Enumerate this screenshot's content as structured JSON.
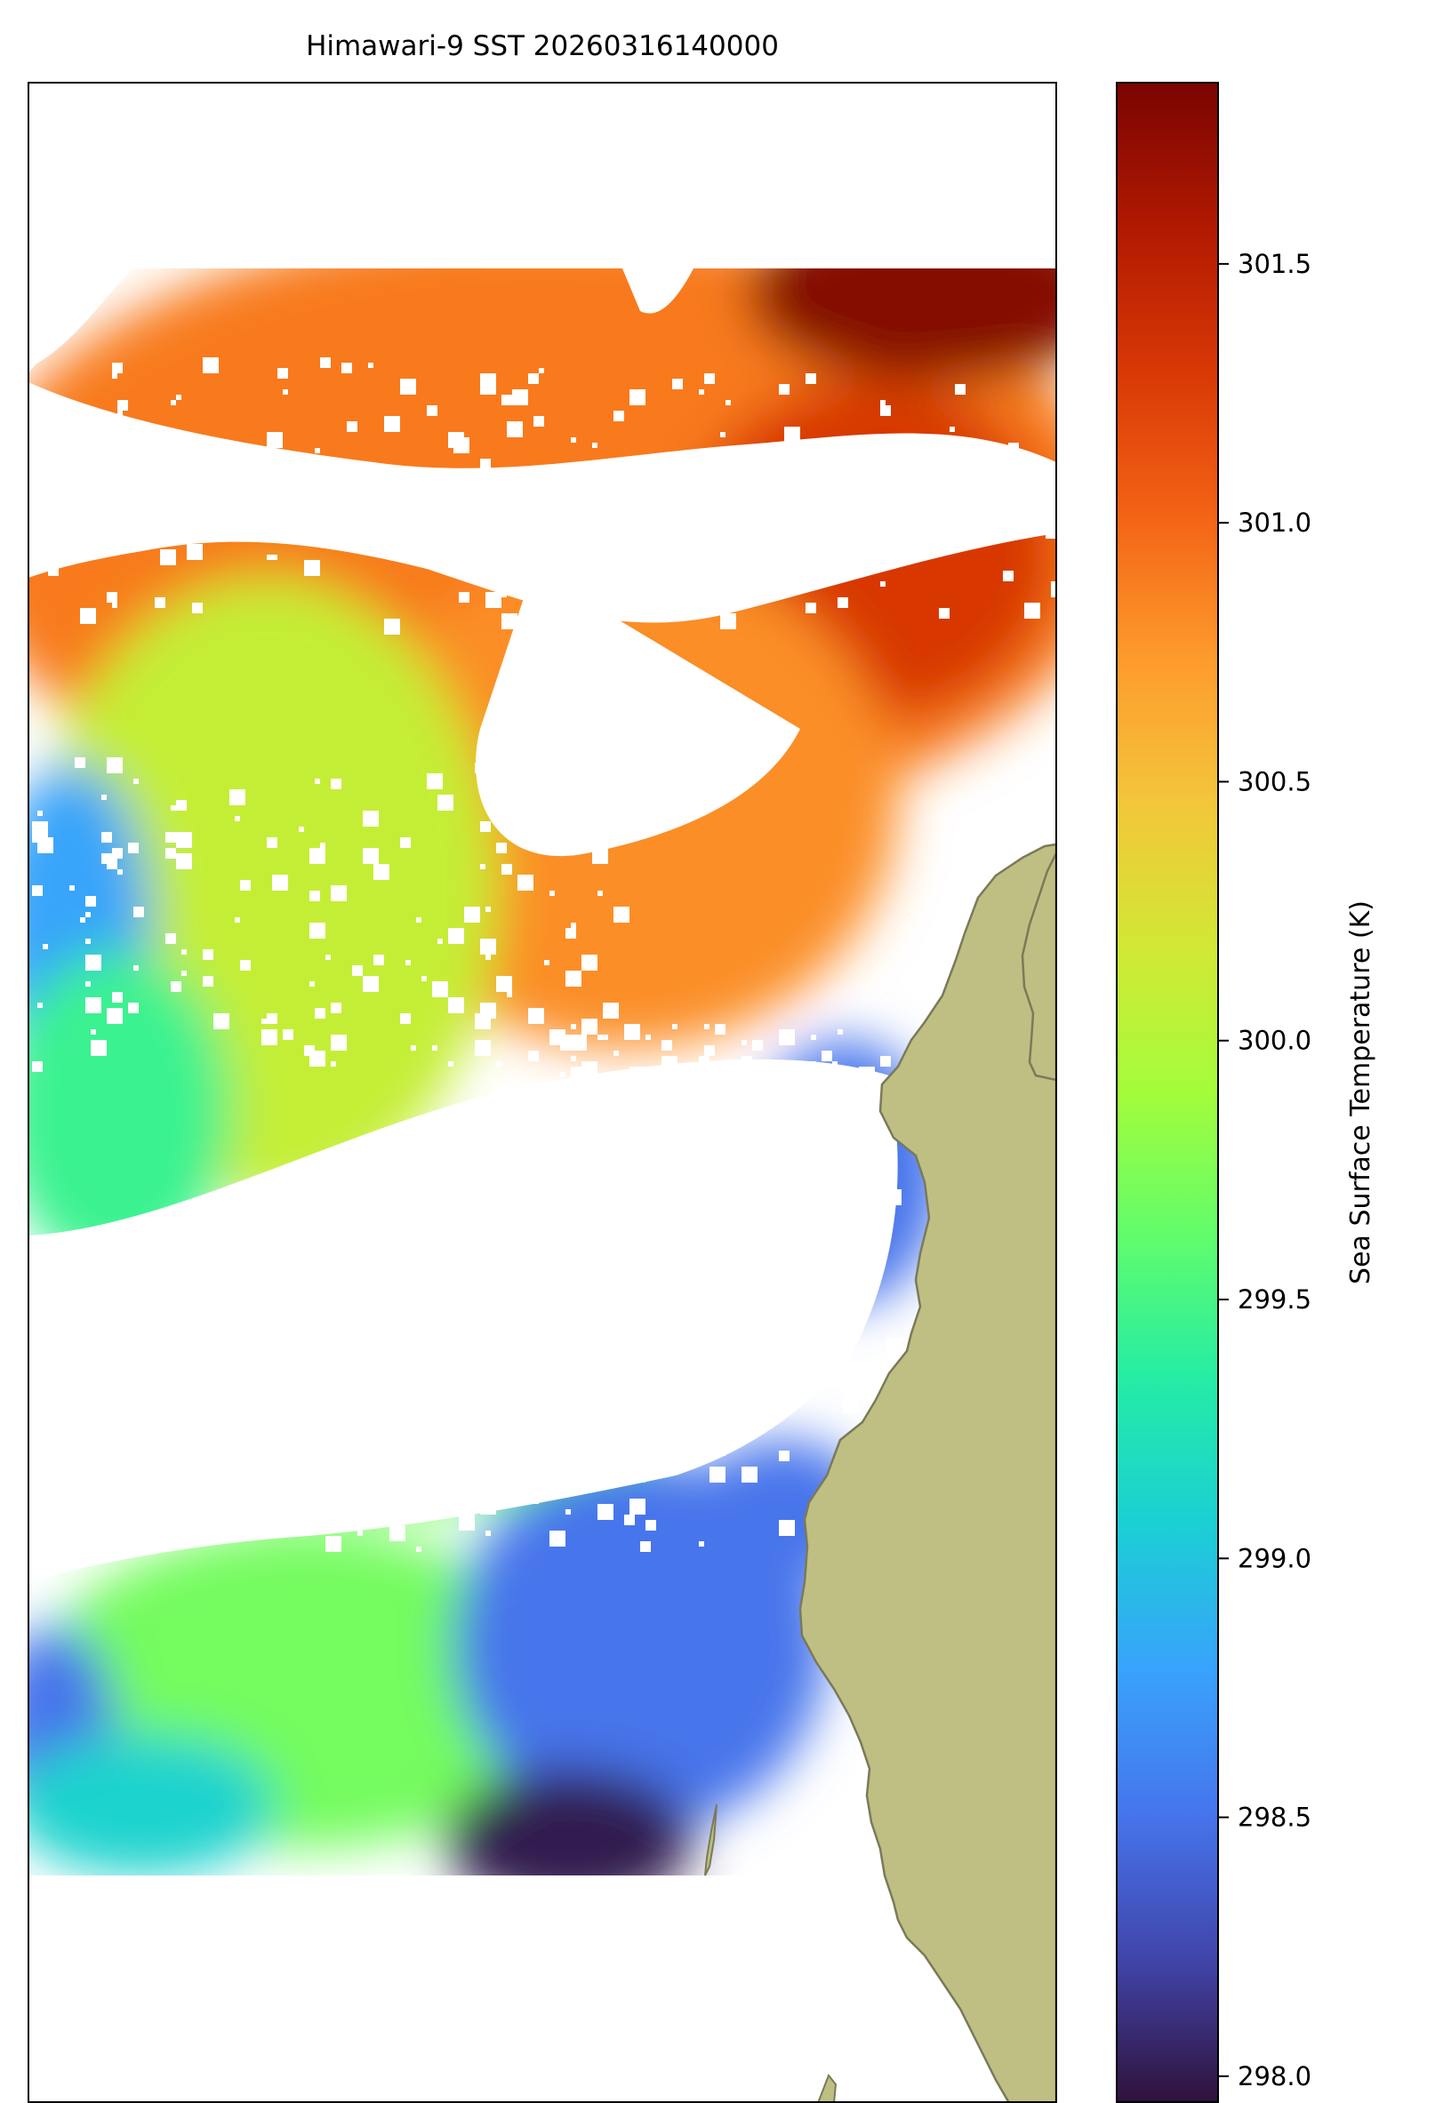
{
  "figure": {
    "title": "Himawari-9 SST 20260316140000"
  },
  "colorbar": {
    "label": "Sea Surface Temperature (K)",
    "range": [
      297.95,
      301.85
    ],
    "ticks": [
      "298.0",
      "298.5",
      "299.0",
      "299.5",
      "300.0",
      "300.5",
      "301.0",
      "301.5"
    ],
    "colormap": "turbo",
    "colormap_stops": [
      "#30123b",
      "#4145ab",
      "#4675ed",
      "#39a2fc",
      "#1bcfd4",
      "#24eca6",
      "#61fc6c",
      "#a4fc3b",
      "#d1e834",
      "#f3c63a",
      "#fe9b2d",
      "#f36315",
      "#d93806",
      "#b11901",
      "#7a0402"
    ]
  },
  "map": {
    "land_color": "#bfbf83",
    "coastline_color": "#7a7a5a",
    "nodata_color": "#ffffff"
  },
  "chart_data": {
    "type": "heatmap",
    "title": "Himawari-9 SST 20260316140000",
    "colorbar_label": "Sea Surface Temperature (K)",
    "value_range": [
      297.95,
      301.85
    ],
    "regions": [
      {
        "area": "northeast top",
        "sst_k": 301.8
      },
      {
        "area": "north band",
        "sst_k": 300.9
      },
      {
        "area": "east-central",
        "sst_k": 301.3
      },
      {
        "area": "central",
        "sst_k": 300.8
      },
      {
        "area": "west-central",
        "sst_k": 300.1
      },
      {
        "area": "far west",
        "sst_k": 298.8
      },
      {
        "area": "south band",
        "sst_k": 299.7
      },
      {
        "area": "south-central minimum",
        "sst_k": 298.0
      },
      {
        "area": "coastal southeast",
        "sst_k": 298.5
      }
    ]
  }
}
